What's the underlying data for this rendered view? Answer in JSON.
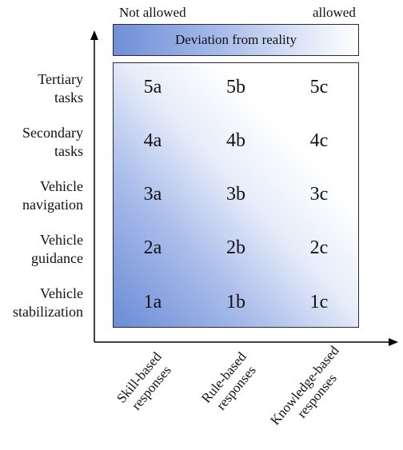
{
  "top_labels": {
    "left": "Not allowed",
    "right": "allowed"
  },
  "banner": {
    "text": "Deviation from reality"
  },
  "rows": [
    {
      "line1": "Tertiary",
      "line2": "tasks"
    },
    {
      "line1": "Secondary",
      "line2": "tasks"
    },
    {
      "line1": "Vehicle",
      "line2": "navigation"
    },
    {
      "line1": "Vehicle",
      "line2": "guidance"
    },
    {
      "line1": "Vehicle",
      "line2": "stabilization"
    }
  ],
  "cells": [
    [
      "5a",
      "5b",
      "5c"
    ],
    [
      "4a",
      "4b",
      "4c"
    ],
    [
      "3a",
      "3b",
      "3c"
    ],
    [
      "2a",
      "2b",
      "2c"
    ],
    [
      "1a",
      "1b",
      "1c"
    ]
  ],
  "columns": [
    {
      "line1": "Skill-based",
      "line2": "responses"
    },
    {
      "line1": "Rule-based",
      "line2": "responses"
    },
    {
      "line1": "Knowledge-based",
      "line2": "responses"
    }
  ],
  "colors": {
    "gradient_dark": "#6a8bd7",
    "gradient_light": "#ffffff",
    "axis": "#000000"
  }
}
